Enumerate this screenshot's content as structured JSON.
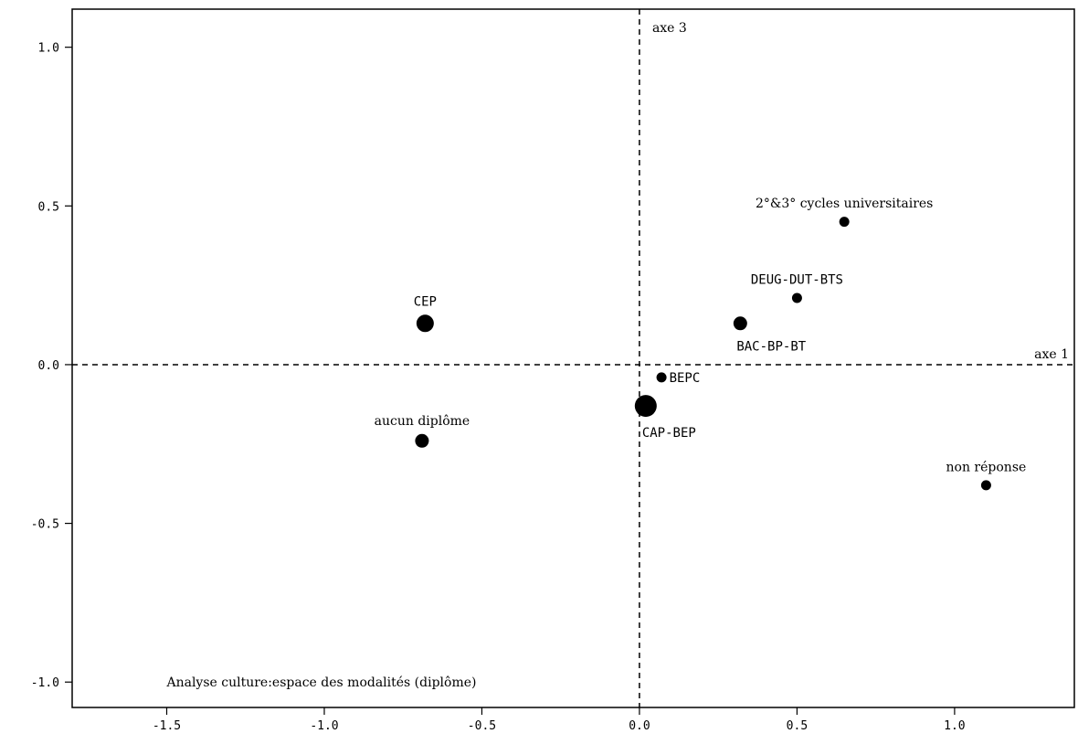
{
  "chart_data": {
    "type": "scatter",
    "title": "Analyse culture:espace des modalités (diplôme)",
    "xlabel": "",
    "ylabel": "",
    "xlim": [
      -1.8,
      1.38
    ],
    "ylim": [
      -1.08,
      1.12
    ],
    "x_ticks": [
      -1.5,
      -1.0,
      -0.5,
      0.0,
      0.5,
      1.0
    ],
    "x_tick_labels": [
      "-1.5",
      "-1.0",
      "-0.5",
      "0.0",
      "0.5",
      "1.0"
    ],
    "y_ticks": [
      1.0,
      0.5,
      0.0,
      -0.5,
      -1.0
    ],
    "y_tick_labels": [
      "1.0",
      "0.5",
      "0.0",
      "-0.5",
      "-1.0"
    ],
    "axis_labels": {
      "horizontal": "axe 1",
      "vertical": "axe 3"
    },
    "grid": false,
    "points": [
      {
        "label": "CEP",
        "x": -0.68,
        "y": 0.13,
        "weight": "large",
        "label_pos": "above",
        "font": "mono"
      },
      {
        "label": "aucun diplôme",
        "x": -0.69,
        "y": -0.24,
        "weight": "medium",
        "label_pos": "above",
        "font": "serif"
      },
      {
        "label": "CAP-BEP",
        "x": 0.02,
        "y": -0.13,
        "weight": "xlarge",
        "label_pos": "below-right",
        "font": "mono"
      },
      {
        "label": "BEPC",
        "x": 0.07,
        "y": -0.04,
        "weight": "small",
        "label_pos": "right",
        "font": "mono"
      },
      {
        "label": "BAC-BP-BT",
        "x": 0.32,
        "y": 0.13,
        "weight": "medium",
        "label_pos": "below-right",
        "font": "mono"
      },
      {
        "label": "DEUG-DUT-BTS",
        "x": 0.5,
        "y": 0.21,
        "weight": "small",
        "label_pos": "above",
        "font": "mono"
      },
      {
        "label": "2°&3° cycles universitaires",
        "x": 0.65,
        "y": 0.45,
        "weight": "small",
        "label_pos": "above",
        "font": "serif"
      },
      {
        "label": "non réponse",
        "x": 1.1,
        "y": -0.38,
        "weight": "small",
        "label_pos": "above",
        "font": "serif"
      }
    ]
  }
}
